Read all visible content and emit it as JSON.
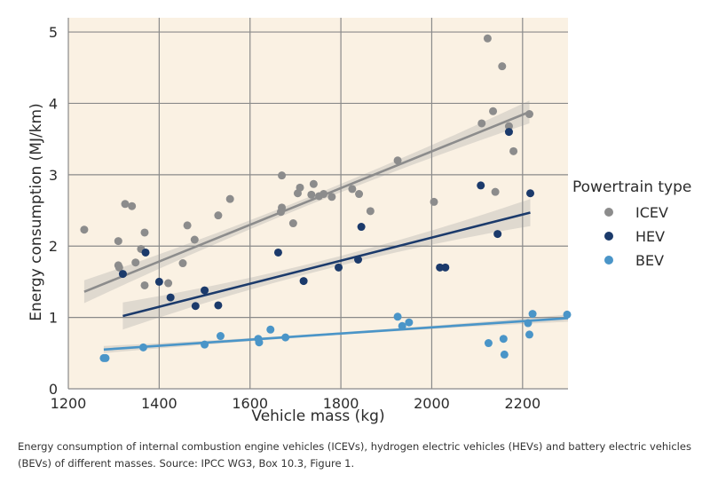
{
  "chart_data": {
    "type": "scatter",
    "xlabel": "Vehicle mass (kg)",
    "ylabel": "Energy consumption (MJ/km)",
    "xlim": [
      1200,
      2300
    ],
    "ylim": [
      0,
      5.2
    ],
    "x_ticks": [
      "1200",
      "1400",
      "1600",
      "1800",
      "2000",
      "2200"
    ],
    "y_ticks": [
      "0",
      "1",
      "2",
      "3",
      "4",
      "5"
    ],
    "grid": true,
    "background": "#faf1e3",
    "legend": {
      "title": "Powertrain type",
      "position": "right"
    },
    "series": [
      {
        "name": "ICEV",
        "color": "#8c8c8c",
        "points": [
          [
            1235,
            2.23
          ],
          [
            1310,
            2.07
          ],
          [
            1310,
            1.73
          ],
          [
            1312,
            1.7
          ],
          [
            1325,
            2.59
          ],
          [
            1340,
            2.56
          ],
          [
            1348,
            1.77
          ],
          [
            1360,
            1.96
          ],
          [
            1368,
            2.19
          ],
          [
            1368,
            1.45
          ],
          [
            1420,
            1.48
          ],
          [
            1452,
            1.76
          ],
          [
            1462,
            2.29
          ],
          [
            1478,
            2.09
          ],
          [
            1530,
            2.43
          ],
          [
            1556,
            2.66
          ],
          [
            1670,
            2.99
          ],
          [
            1670,
            2.54
          ],
          [
            1668,
            2.48
          ],
          [
            1695,
            2.32
          ],
          [
            1705,
            2.74
          ],
          [
            1710,
            2.82
          ],
          [
            1735,
            2.72
          ],
          [
            1740,
            2.87
          ],
          [
            1752,
            2.7
          ],
          [
            1762,
            2.73
          ],
          [
            1780,
            2.69
          ],
          [
            1825,
            2.8
          ],
          [
            1840,
            2.73
          ],
          [
            1865,
            2.49
          ],
          [
            1925,
            3.2
          ],
          [
            2005,
            2.62
          ],
          [
            2110,
            3.72
          ],
          [
            2123,
            4.91
          ],
          [
            2135,
            3.89
          ],
          [
            2140,
            2.76
          ],
          [
            2155,
            4.52
          ],
          [
            2170,
            3.68
          ],
          [
            2180,
            3.33
          ],
          [
            2215,
            3.85
          ]
        ],
        "fit": {
          "x": [
            1235,
            2215
          ],
          "y": [
            1.36,
            3.88
          ]
        }
      },
      {
        "name": "HEV",
        "color": "#1b3a6b",
        "points": [
          [
            1320,
            1.61
          ],
          [
            1370,
            1.91
          ],
          [
            1400,
            1.5
          ],
          [
            1425,
            1.28
          ],
          [
            1480,
            1.16
          ],
          [
            1500,
            1.38
          ],
          [
            1530,
            1.17
          ],
          [
            1662,
            1.91
          ],
          [
            1718,
            1.51
          ],
          [
            1795,
            1.7
          ],
          [
            1838,
            1.81
          ],
          [
            1845,
            2.27
          ],
          [
            2018,
            1.7
          ],
          [
            2030,
            1.7
          ],
          [
            2108,
            2.85
          ],
          [
            2145,
            2.17
          ],
          [
            2170,
            3.6
          ],
          [
            2217,
            2.74
          ]
        ],
        "fit": {
          "x": [
            1320,
            2217
          ],
          "y": [
            1.02,
            2.47
          ]
        }
      },
      {
        "name": "BEV",
        "color": "#4a95c8",
        "points": [
          [
            1278,
            0.43
          ],
          [
            1282,
            0.43
          ],
          [
            1365,
            0.58
          ],
          [
            1500,
            0.62
          ],
          [
            1535,
            0.74
          ],
          [
            1618,
            0.7
          ],
          [
            1620,
            0.65
          ],
          [
            1645,
            0.83
          ],
          [
            1678,
            0.72
          ],
          [
            1925,
            1.01
          ],
          [
            1935,
            0.88
          ],
          [
            1950,
            0.93
          ],
          [
            2125,
            0.64
          ],
          [
            2158,
            0.7
          ],
          [
            2160,
            0.48
          ],
          [
            2212,
            0.92
          ],
          [
            2215,
            0.76
          ],
          [
            2222,
            1.05
          ],
          [
            2300,
            1.04
          ]
        ],
        "fit": {
          "x": [
            1278,
            2300
          ],
          "y": [
            0.55,
            0.99
          ]
        }
      }
    ]
  },
  "caption": "Energy consumption of internal combustion engine vehicles (ICEVs), hydrogen electric vehicles (HEVs) and battery electric vehicles (BEVs) of different masses. Source: IPCC WG3, Box 10.3, Figure 1."
}
